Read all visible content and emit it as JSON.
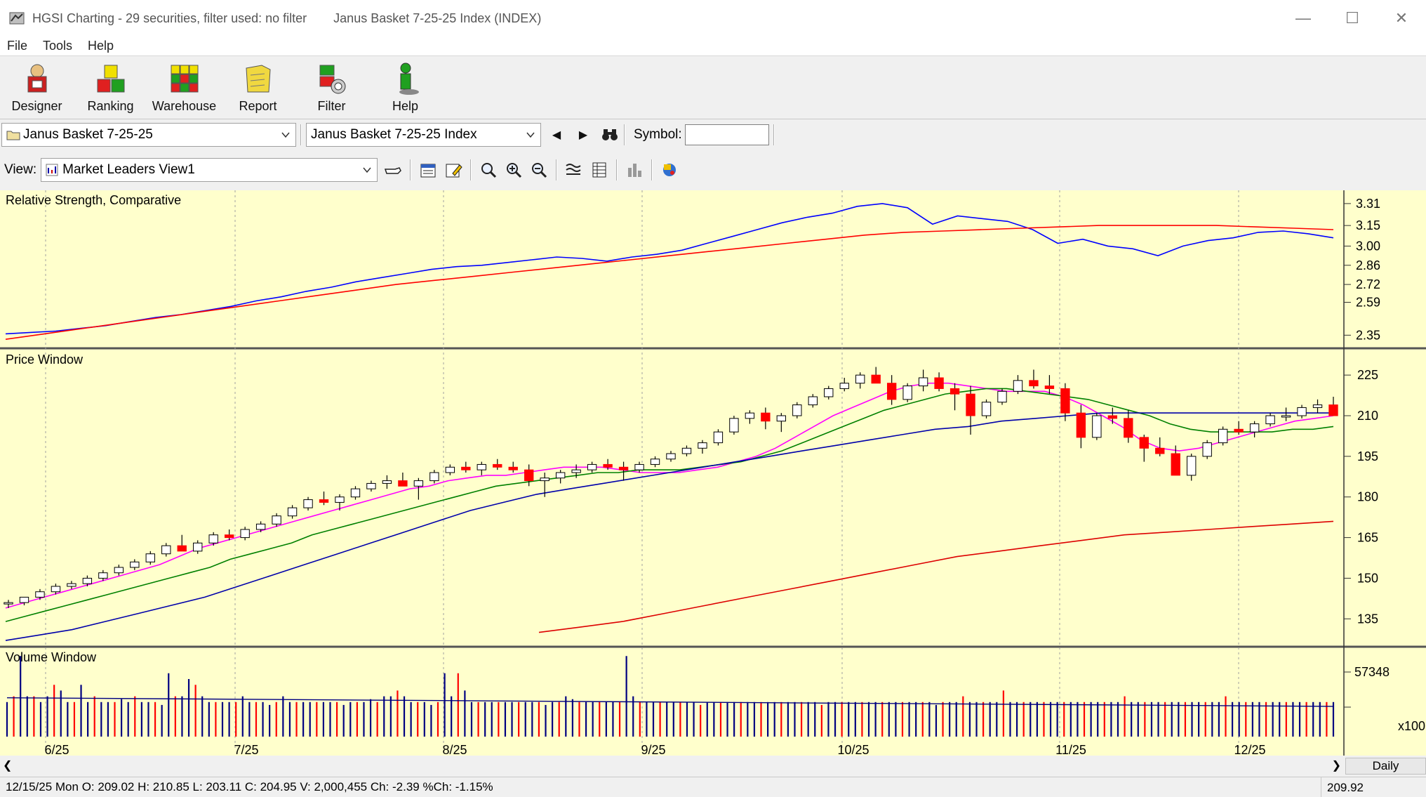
{
  "window": {
    "title": "HGSI Charting - 29 securities, filter used: no filter",
    "subtitle": "Janus Basket 7-25-25 Index (INDEX)",
    "minimize_icon": "minimize-icon",
    "maximize_icon": "maximize-icon",
    "close_icon": "close-icon"
  },
  "menu": {
    "items": [
      "File",
      "Tools",
      "Help"
    ]
  },
  "toolbar": {
    "buttons": [
      {
        "label": "Designer",
        "icon": "designer-icon"
      },
      {
        "label": "Ranking",
        "icon": "ranking-icon"
      },
      {
        "label": "Warehouse",
        "icon": "warehouse-icon"
      },
      {
        "label": "Report",
        "icon": "report-icon"
      },
      {
        "label": "Filter",
        "icon": "filter-icon"
      },
      {
        "label": "Help",
        "icon": "help-icon"
      }
    ]
  },
  "selectors": {
    "basket": "Janus Basket 7-25-25",
    "security": "Janus Basket 7-25-25 Index",
    "symbol_label": "Symbol:",
    "symbol_value": ""
  },
  "view": {
    "label": "View:",
    "selected": "Market Leaders View1"
  },
  "panes": {
    "rs_title": "Relative Strength, Comparative",
    "price_title": "Price Window",
    "volume_title": "Volume Window"
  },
  "colors": {
    "background": "#ffffcc",
    "up_candle": "#ffffff",
    "down_candle": "#ff0000",
    "rs_line": "#0000ff",
    "rs_avg": "#ff0000",
    "ma_fast": "#ff00ff",
    "ma_mid": "#008000",
    "ma_slow": "#0000aa",
    "ma_long": "#dd0000",
    "vol_up": "#000080",
    "vol_down": "#ff0000"
  },
  "chart_data": [
    {
      "type": "line",
      "title": "Relative Strength, Comparative",
      "y_ticks": [
        "3.31",
        "3.15",
        "3.00",
        "2.86",
        "2.72",
        "2.59",
        "2.35"
      ],
      "y_tick_values": [
        3.31,
        3.15,
        3.0,
        2.86,
        2.72,
        2.59,
        2.35
      ],
      "series": [
        {
          "values": [
            2.36,
            2.37,
            2.38,
            2.4,
            2.42,
            2.45,
            2.48,
            2.5,
            2.53,
            2.56,
            2.6,
            2.63,
            2.67,
            2.7,
            2.74,
            2.77,
            2.8,
            2.83,
            2.85,
            2.86,
            2.88,
            2.9,
            2.92,
            2.91,
            2.89,
            2.92,
            2.94,
            2.97,
            3.02,
            3.07,
            3.12,
            3.17,
            3.21,
            3.24,
            3.29,
            3.31,
            3.28,
            3.16,
            3.22,
            3.2,
            3.18,
            3.12,
            3.02,
            3.05,
            3.0,
            2.98,
            2.93,
            3.0,
            3.04,
            3.06,
            3.1,
            3.11,
            3.09,
            3.06
          ]
        },
        {
          "values": [
            2.32,
            2.36,
            2.4,
            2.44,
            2.48,
            2.52,
            2.56,
            2.6,
            2.64,
            2.68,
            2.72,
            2.75,
            2.78,
            2.81,
            2.84,
            2.87,
            2.9,
            2.93,
            2.96,
            2.99,
            3.02,
            3.05,
            3.08,
            3.1,
            3.11,
            3.12,
            3.13,
            3.14,
            3.15,
            3.15,
            3.15,
            3.15,
            3.14,
            3.13,
            3.12
          ]
        }
      ]
    },
    {
      "type": "candlestick",
      "title": "Price Window",
      "x_tick_labels": [
        "6/25",
        "7/25",
        "8/25",
        "9/25",
        "10/25",
        "11/25",
        "12/25"
      ],
      "y_ticks": [
        "225",
        "210",
        "195",
        "180",
        "165",
        "150",
        "135"
      ],
      "y_tick_values": [
        225,
        210,
        195,
        180,
        165,
        150,
        135
      ],
      "ohlc": [
        [
          141,
          142,
          139,
          141
        ],
        [
          141,
          143,
          140,
          143
        ],
        [
          143,
          146,
          142,
          145
        ],
        [
          145,
          148,
          144,
          147
        ],
        [
          147,
          149,
          146,
          148
        ],
        [
          148,
          151,
          147,
          150
        ],
        [
          150,
          153,
          149,
          152
        ],
        [
          152,
          155,
          151,
          154
        ],
        [
          154,
          157,
          153,
          156
        ],
        [
          156,
          160,
          155,
          159
        ],
        [
          159,
          163,
          158,
          162
        ],
        [
          162,
          166,
          160,
          160
        ],
        [
          160,
          164,
          159,
          163
        ],
        [
          163,
          167,
          162,
          166
        ],
        [
          166,
          168,
          164,
          165
        ],
        [
          165,
          169,
          164,
          168
        ],
        [
          168,
          171,
          167,
          170
        ],
        [
          170,
          174,
          169,
          173
        ],
        [
          173,
          177,
          172,
          176
        ],
        [
          176,
          180,
          175,
          179
        ],
        [
          179,
          182,
          177,
          178
        ],
        [
          178,
          181,
          175,
          180
        ],
        [
          180,
          184,
          179,
          183
        ],
        [
          183,
          186,
          182,
          185
        ],
        [
          185,
          188,
          183,
          186
        ],
        [
          186,
          189,
          184,
          184
        ],
        [
          184,
          187,
          179,
          186
        ],
        [
          186,
          190,
          185,
          189
        ],
        [
          189,
          192,
          188,
          191
        ],
        [
          191,
          193,
          189,
          190
        ],
        [
          190,
          193,
          188,
          192
        ],
        [
          192,
          194,
          190,
          191
        ],
        [
          191,
          193,
          189,
          190
        ],
        [
          190,
          192,
          184,
          186
        ],
        [
          186,
          189,
          180,
          187
        ],
        [
          187,
          190,
          185,
          189
        ],
        [
          189,
          192,
          187,
          190
        ],
        [
          190,
          193,
          189,
          192
        ],
        [
          192,
          194,
          190,
          191
        ],
        [
          191,
          193,
          186,
          190
        ],
        [
          190,
          193,
          189,
          192
        ],
        [
          192,
          195,
          191,
          194
        ],
        [
          194,
          197,
          193,
          196
        ],
        [
          196,
          199,
          195,
          198
        ],
        [
          198,
          201,
          196,
          200
        ],
        [
          200,
          205,
          199,
          204
        ],
        [
          204,
          210,
          203,
          209
        ],
        [
          209,
          212,
          207,
          211
        ],
        [
          211,
          213,
          205,
          208
        ],
        [
          208,
          211,
          204,
          210
        ],
        [
          210,
          215,
          209,
          214
        ],
        [
          214,
          218,
          213,
          217
        ],
        [
          217,
          221,
          216,
          220
        ],
        [
          220,
          224,
          219,
          222
        ],
        [
          222,
          226,
          220,
          225
        ],
        [
          225,
          228,
          222,
          222
        ],
        [
          222,
          225,
          214,
          216
        ],
        [
          216,
          222,
          215,
          221
        ],
        [
          221,
          227,
          219,
          224
        ],
        [
          224,
          226,
          219,
          220
        ],
        [
          220,
          222,
          212,
          218
        ],
        [
          218,
          221,
          203,
          210
        ],
        [
          210,
          216,
          209,
          215
        ],
        [
          215,
          220,
          214,
          219
        ],
        [
          219,
          225,
          218,
          223
        ],
        [
          223,
          227,
          220,
          221
        ],
        [
          221,
          225,
          218,
          220
        ],
        [
          220,
          222,
          208,
          211
        ],
        [
          211,
          214,
          198,
          202
        ],
        [
          202,
          211,
          201,
          210
        ],
        [
          210,
          213,
          207,
          209
        ],
        [
          209,
          212,
          200,
          202
        ],
        [
          202,
          203,
          193,
          198
        ],
        [
          198,
          202,
          195,
          196
        ],
        [
          196,
          199,
          188,
          188
        ],
        [
          188,
          196,
          186,
          195
        ],
        [
          195,
          201,
          194,
          200
        ],
        [
          200,
          206,
          199,
          205
        ],
        [
          205,
          208,
          203,
          204
        ],
        [
          204,
          208,
          202,
          207
        ],
        [
          207,
          211,
          206,
          210
        ],
        [
          210,
          213,
          208,
          210
        ],
        [
          210,
          214,
          209,
          213
        ],
        [
          213,
          216,
          211,
          214
        ],
        [
          214,
          217,
          210,
          210
        ]
      ],
      "moving_averages": [
        {
          "values": [
            139,
            141,
            143,
            145,
            147,
            149,
            151,
            153,
            155,
            158,
            161,
            163,
            165,
            167,
            169,
            171,
            173,
            175,
            177,
            179,
            181,
            183,
            184,
            186,
            187,
            188,
            188,
            189,
            190,
            191,
            191,
            191,
            190,
            189,
            189,
            189,
            190,
            191,
            193,
            195,
            198,
            202,
            206,
            210,
            213,
            216,
            219,
            221,
            222,
            222,
            221,
            220,
            219,
            219,
            219,
            217,
            214,
            210,
            206,
            201,
            198,
            197,
            198,
            200,
            202,
            204,
            206,
            208,
            209,
            210
          ]
        },
        {
          "values": [
            134,
            136,
            138,
            140,
            142,
            144,
            146,
            148,
            150,
            152,
            154,
            157,
            159,
            161,
            163,
            166,
            168,
            170,
            172,
            174,
            176,
            178,
            180,
            182,
            184,
            185,
            186,
            187,
            188,
            189,
            189,
            190,
            190,
            190,
            191,
            192,
            193,
            195,
            197,
            200,
            203,
            206,
            209,
            212,
            214,
            216,
            218,
            219,
            220,
            220,
            219,
            218,
            217,
            216,
            214,
            212,
            210,
            207,
            205,
            204,
            204,
            204,
            204,
            205,
            205,
            206
          ]
        },
        {
          "values": [
            127,
            129,
            131,
            134,
            137,
            140,
            143,
            147,
            151,
            155,
            159,
            163,
            167,
            171,
            175,
            178,
            181,
            183,
            185,
            187,
            189,
            191,
            193,
            195,
            197,
            199,
            201,
            203,
            205,
            206,
            208,
            209,
            210,
            211,
            211,
            211,
            211,
            211,
            211,
            211,
            211
          ]
        },
        {
          "values": [
            130,
            132,
            134,
            137,
            140,
            143,
            146,
            149,
            152,
            155,
            158,
            160,
            162,
            164,
            166,
            167,
            168,
            169,
            170,
            171
          ]
        }
      ]
    },
    {
      "type": "bar",
      "title": "Volume Window",
      "y_ticks": [
        "57348"
      ],
      "y_tick_values": [
        57348
      ],
      "y_units_label": "x100",
      "values": [
        12,
        14,
        28,
        14,
        14,
        12,
        14,
        18,
        16,
        12,
        12,
        18,
        12,
        14,
        12,
        12,
        12,
        13,
        12,
        14,
        12,
        12,
        12,
        11,
        22,
        14,
        14,
        20,
        18,
        14,
        12,
        12,
        12,
        12,
        12,
        14,
        12,
        12,
        12,
        11,
        12,
        14,
        12,
        12,
        12,
        12,
        12,
        12,
        12,
        12,
        11,
        12,
        12,
        12,
        13,
        12,
        14,
        14,
        16,
        14,
        12,
        12,
        12,
        11,
        12,
        22,
        14,
        22,
        16,
        12,
        12,
        12,
        12,
        12,
        12,
        12,
        12,
        12,
        12,
        12,
        11,
        12,
        12,
        14,
        13,
        12,
        12,
        12,
        12,
        12,
        12,
        12,
        28,
        14,
        12,
        12,
        12,
        12,
        12,
        12,
        12,
        12,
        12,
        11,
        12,
        12,
        12,
        12,
        12,
        12,
        12,
        12,
        12,
        12,
        12,
        12,
        12,
        12,
        12,
        12,
        12,
        11,
        12,
        12,
        12,
        12,
        12,
        12,
        12,
        12,
        12,
        12,
        12,
        12,
        12,
        12,
        12,
        12,
        11,
        12,
        12,
        12,
        14,
        12,
        12,
        12,
        12,
        12,
        16,
        12,
        12,
        12,
        12,
        12,
        12,
        12,
        12,
        12,
        12,
        12,
        12,
        12,
        12,
        12,
        12,
        12,
        14,
        12,
        12,
        12,
        12,
        12,
        12,
        12,
        12,
        12,
        12,
        12,
        12,
        12,
        12,
        14,
        12,
        12,
        12,
        12,
        12,
        12,
        12,
        12,
        12,
        12,
        12,
        12,
        12,
        12,
        12,
        12
      ]
    }
  ],
  "status": {
    "text": "12/15/25 Mon O: 209.02 H: 210.85 L: 203.11 C: 204.95 V: 2,000,455 Ch: -2.39 %Ch: -1.15%",
    "last": "209.92",
    "period": "Daily"
  }
}
